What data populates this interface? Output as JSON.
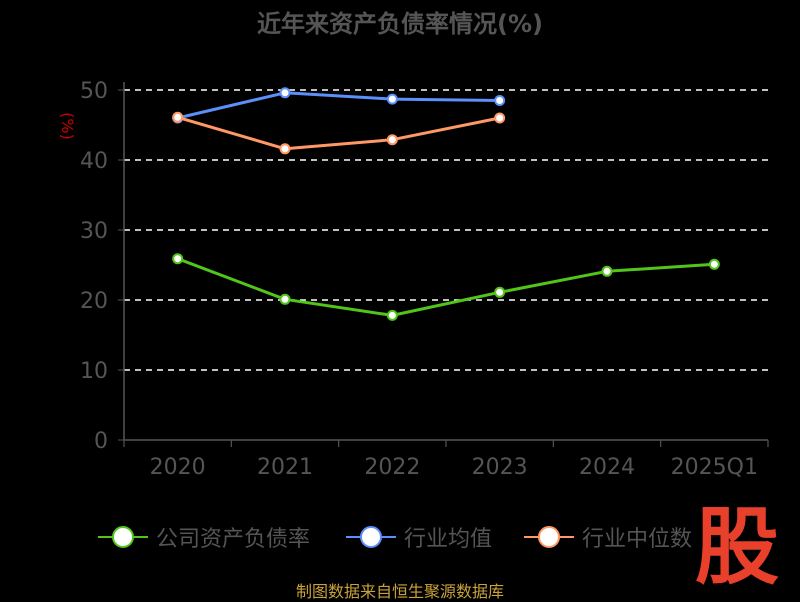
{
  "chart_data": {
    "type": "line",
    "title": "近年来资产负债率情况(%)",
    "ylabel": "(%)",
    "xlabel": "",
    "categories": [
      "2020",
      "2021",
      "2022",
      "2023",
      "2024",
      "2025Q1"
    ],
    "ylim": [
      0,
      50
    ],
    "yticks": [
      0,
      10,
      20,
      30,
      40,
      50
    ],
    "grid": true,
    "legend_position": "bottom",
    "series": [
      {
        "name": "公司资产负债率",
        "color": "#52c41a",
        "values": [
          25.9,
          20.1,
          17.8,
          21.1,
          24.1,
          25.1
        ]
      },
      {
        "name": "行业均值",
        "color": "#5b8ff9",
        "values": [
          46.0,
          49.6,
          48.7,
          48.5,
          null,
          null
        ]
      },
      {
        "name": "行业中位数",
        "color": "#ff9865",
        "values": [
          46.1,
          41.6,
          42.9,
          46.0,
          null,
          null
        ]
      }
    ]
  },
  "footer": {
    "source": "制图数据来自恒生聚源数据库"
  },
  "logo": {
    "text": "股"
  },
  "colors": {
    "background": "#000000",
    "axis": "#555555",
    "grid": "#ffffff",
    "ylabel": "#cc0000"
  }
}
